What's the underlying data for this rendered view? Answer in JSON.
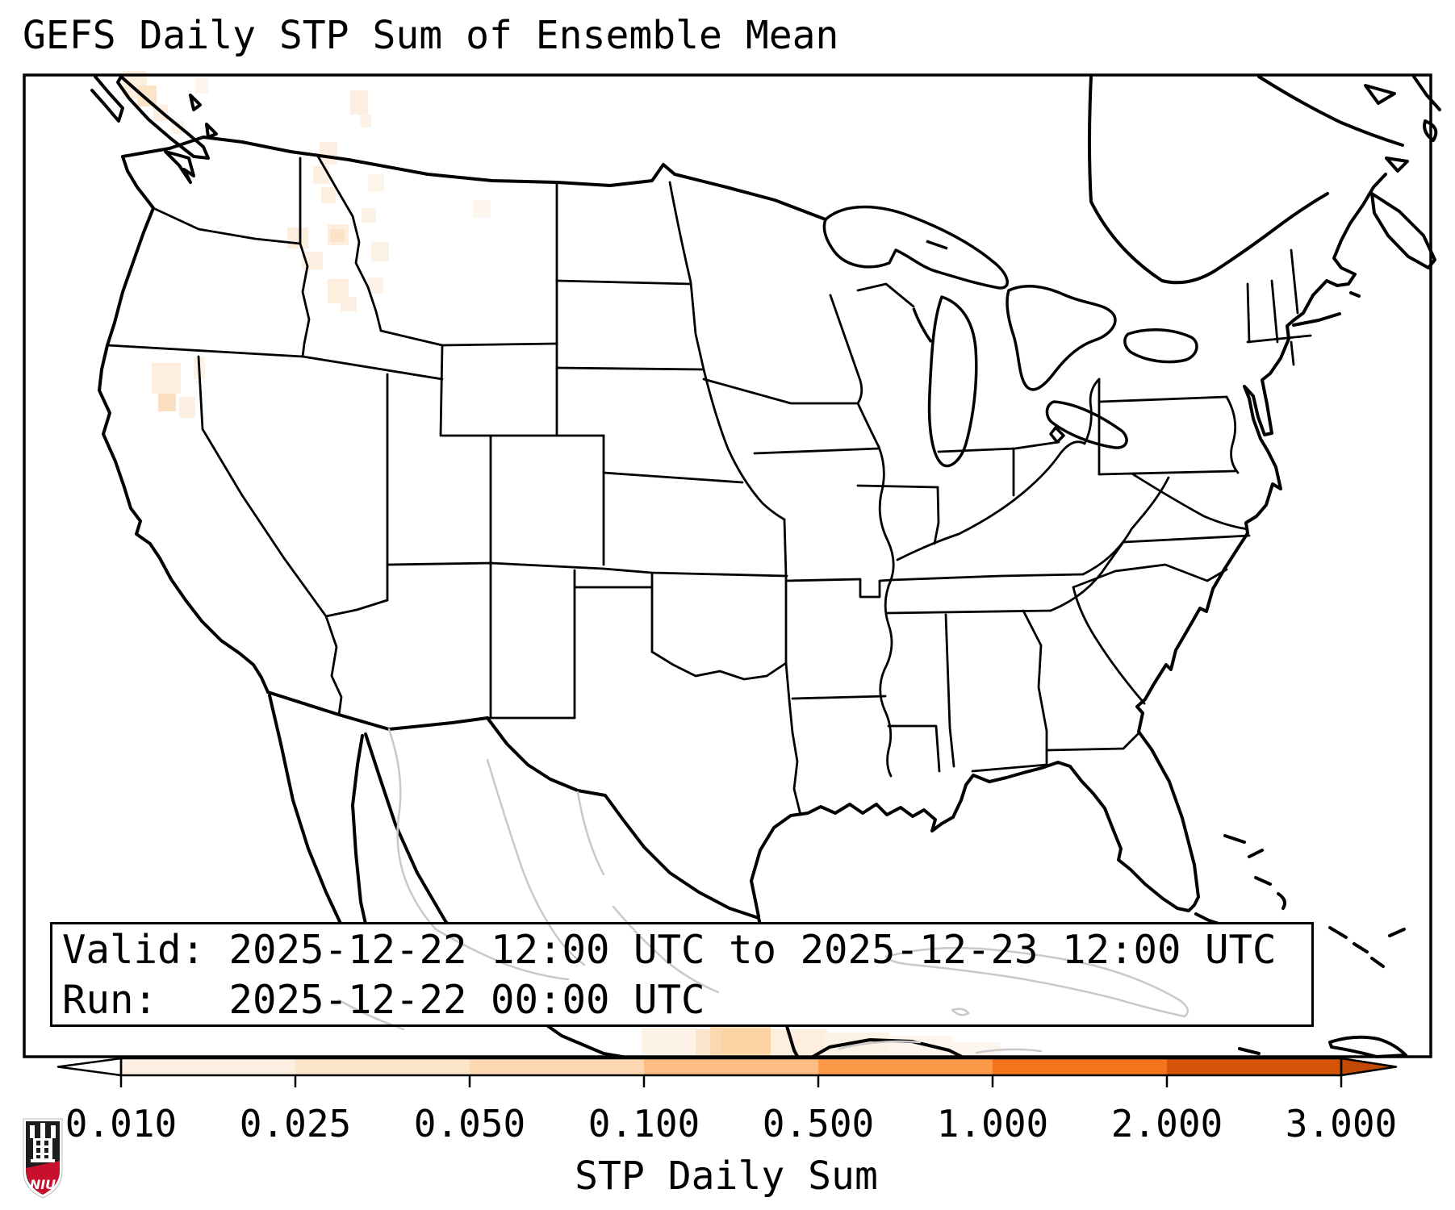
{
  "title": "GEFS Daily STP Sum of Ensemble Mean",
  "info_box": {
    "lines": [
      "Valid: 2025-12-22 12:00 UTC to 2025-12-23 12:00 UTC",
      "Run:   2025-12-22 00:00 UTC"
    ]
  },
  "colorbar": {
    "label": "STP Daily Sum",
    "tick_labels": [
      "0.010",
      "0.025",
      "0.050",
      "0.100",
      "0.500",
      "1.000",
      "2.000",
      "3.000"
    ],
    "segment_colors": [
      "#fdf0e2",
      "#fde5ca",
      "#fdd8b3",
      "#fcbd84",
      "#fd9a4a",
      "#f4741d",
      "#d5540a"
    ],
    "under_arrow_color": "#ffffff",
    "over_arrow_color": "#c34a06",
    "outline_color": "#000000"
  },
  "logo": {
    "text": "NIU",
    "shield_color": "#1d1d1b",
    "band_color": "#c8102e"
  }
}
